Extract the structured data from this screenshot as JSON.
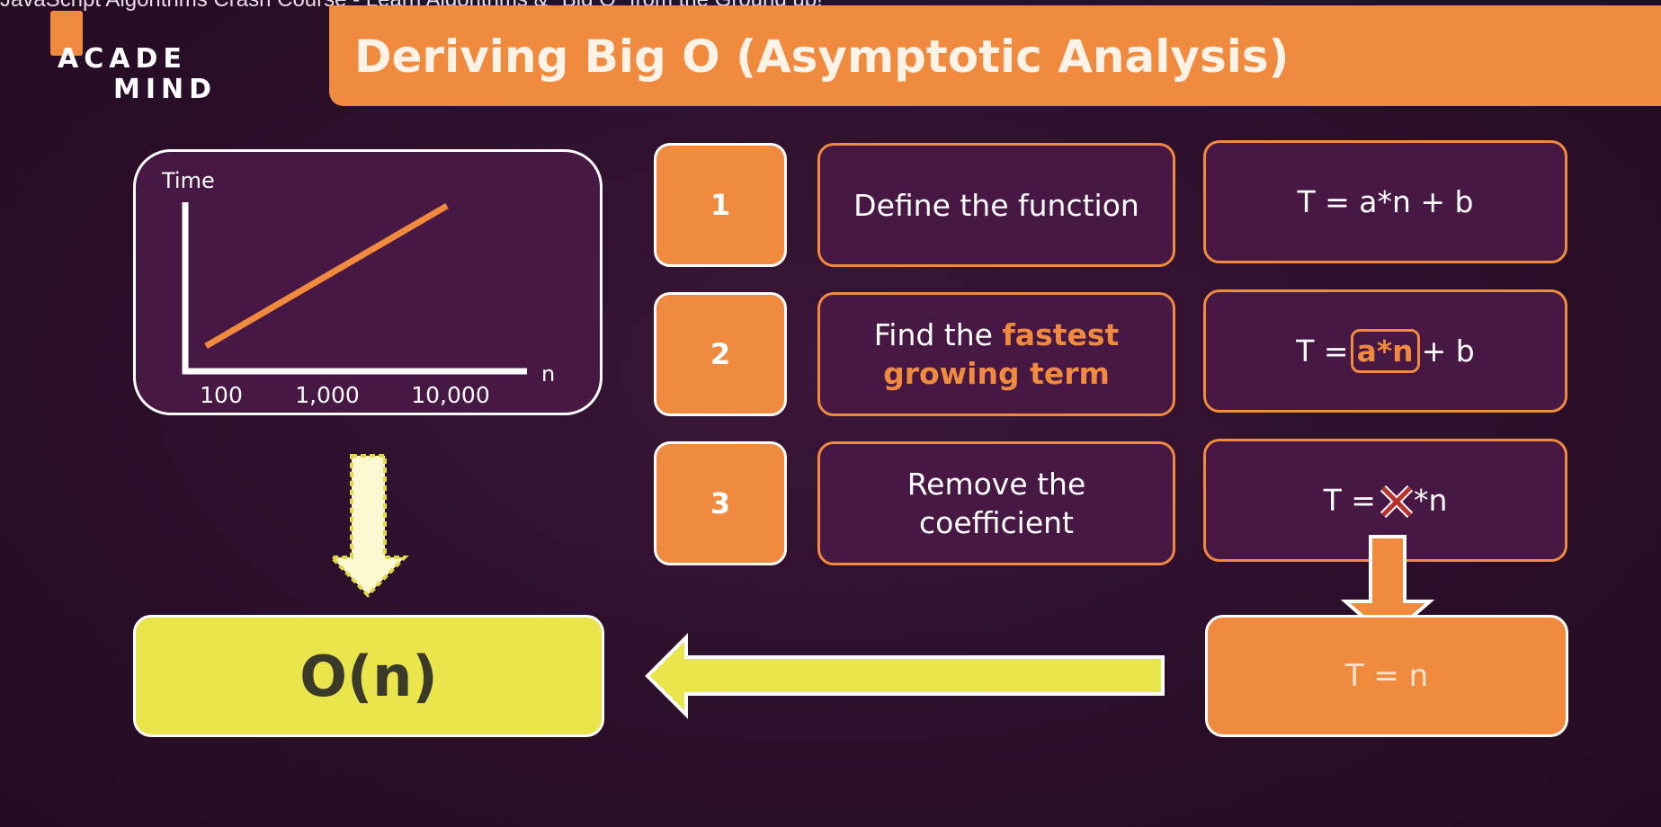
{
  "video_title": "JavaScript Algorithms Crash Course - Learn Algorithms & \"Big O\" from the Ground up!",
  "logo": {
    "line1": "ACADE",
    "line2": "MIND"
  },
  "title": "Deriving Big O (Asymptotic Analysis)",
  "chart_data": {
    "type": "line",
    "ylabel": "Time",
    "xlabel": "n",
    "x_ticks": [
      "100",
      "1,000",
      "10,000"
    ],
    "series": [
      {
        "values": [
          1,
          5
        ]
      }
    ]
  },
  "steps": [
    {
      "number": "1",
      "label_parts": [
        "Define the function"
      ],
      "formula": "T = a*n + b"
    },
    {
      "number": "2",
      "label_parts": [
        "Find the ",
        "fastest growing term"
      ],
      "formula_parts": [
        "T = ",
        "a*n",
        " + b"
      ]
    },
    {
      "number": "3",
      "label_parts": [
        "Remove the coefficient"
      ],
      "formula_parts": [
        "T = ",
        "*n"
      ]
    }
  ],
  "result_formula": "T = n",
  "big_o_result": "O(n)",
  "colors": {
    "accent": "#f08a3e",
    "background": "#2c0f2a",
    "panel": "#471843",
    "result": "#ebe54c"
  }
}
